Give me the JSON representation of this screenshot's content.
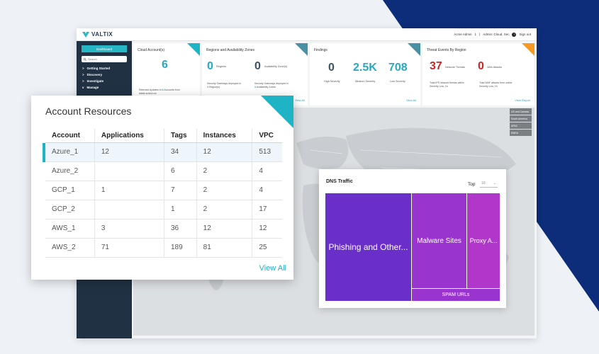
{
  "app": {
    "brand": "VALTIX",
    "user": "Acme Admin",
    "user_count": "1",
    "role": "Admin: Cloud, Sec",
    "signout": "Sign out",
    "help": "?"
  },
  "sidebar": {
    "dashboard": "Dashboard",
    "search_placeholder": "Search",
    "items": [
      {
        "label": "Getting Started",
        "icon": "chevron-right-icon"
      },
      {
        "label": "Discovery",
        "icon": "chevron-right-icon"
      },
      {
        "label": "Investigate",
        "icon": "chevron-right-icon"
      },
      {
        "label": "Manage",
        "icon": "chevron-down-icon"
      }
    ]
  },
  "cards": {
    "cloud": {
      "title": "Cloud Account(s)",
      "value": "6",
      "note_prefix": "Relevant Updates in",
      "note_count": "6",
      "note_suffix": "Accounts from",
      "note_line2": "latest sched.run"
    },
    "regions": {
      "title": "Regions and Availability Zones",
      "regions_value": "0",
      "regions_label": "Regions",
      "zones_value": "0",
      "zones_label": "Availability Zone(s)",
      "note1": "Security Gateways deployed in",
      "note1_count": "3",
      "note1_suffix": "Region(s)",
      "note2": "Security Gateways deployed in",
      "note2_count": "3",
      "note2_suffix": "Availability Zones",
      "link": "View All"
    },
    "findings": {
      "title": "Findings",
      "high_value": "0",
      "high_label": "High Severity",
      "medium_value": "2.5K",
      "medium_label": "Medium Severity",
      "low_value": "708",
      "low_label": "Low Severity",
      "link": "View All"
    },
    "threats": {
      "title": "Threat Events By Region",
      "network_value": "37",
      "network_label": "Network Threats",
      "web_value": "0",
      "web_label": "Web Attacks",
      "note1": "Total IPS network threats within",
      "note1b": "Severity Low, 1h",
      "note2": "Total WAF attacks from online",
      "note2b": "Severity Low, 1h",
      "link": "View Report"
    }
  },
  "map_legend": [
    "US and Canada",
    "South America",
    "APAC",
    "EMEA"
  ],
  "colors": {
    "teal": "#1fb4c5",
    "navy": "#1f3143",
    "orange": "#f59a23",
    "slate": "#4a90a4"
  },
  "account_resources": {
    "title": "Account Resources",
    "columns": [
      "Account",
      "Applications",
      "Tags",
      "Instances",
      "VPC"
    ],
    "rows": [
      [
        "Azure_1",
        "12",
        "34",
        "12",
        "513"
      ],
      [
        "Azure_2",
        "",
        "6",
        "2",
        "4"
      ],
      [
        "GCP_1",
        "1",
        "7",
        "2",
        "4"
      ],
      [
        "GCP_2",
        "",
        "1",
        "2",
        "17"
      ],
      [
        "AWS_1",
        "3",
        "36",
        "12",
        "12"
      ],
      [
        "AWS_2",
        "71",
        "189",
        "81",
        "25"
      ]
    ],
    "view_all": "View All"
  },
  "dns": {
    "title": "DNS Traffic",
    "top_label": "Top",
    "top_value": "10",
    "tiles": [
      {
        "label": "Phishing and Other...",
        "color": "#6a2fc9"
      },
      {
        "label": "Malware Sites",
        "color": "#9a34cf"
      },
      {
        "label": "Proxy A...",
        "color": "#b137cb"
      },
      {
        "label": "SPAM URLs",
        "color": "#9a34cf"
      }
    ]
  }
}
